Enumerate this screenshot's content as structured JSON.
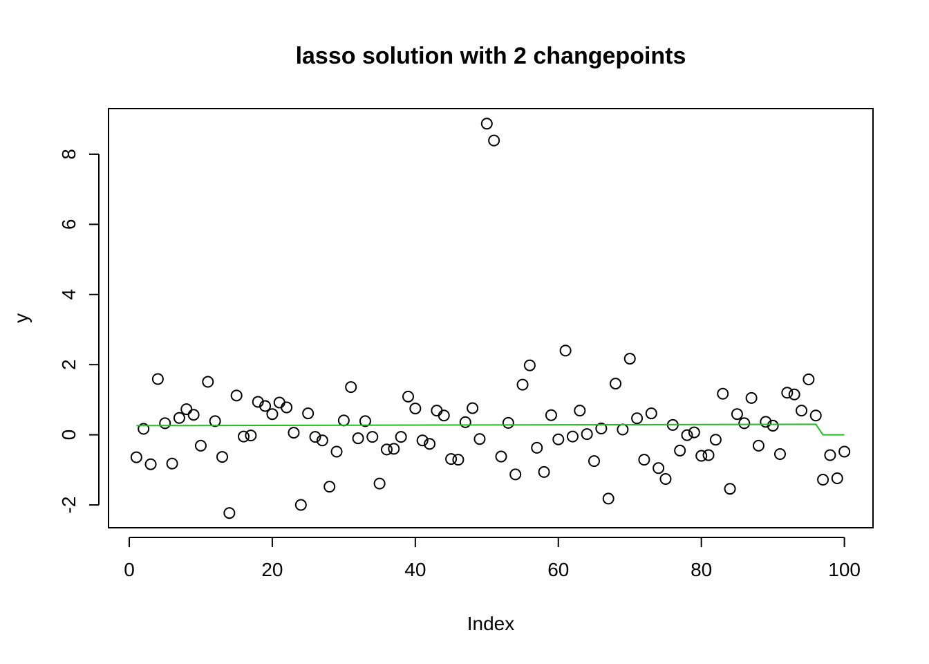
{
  "chart_data": {
    "type": "scatter",
    "title": "lasso solution with 2 changepoints",
    "xlabel": "Index",
    "ylabel": "y",
    "xlim": [
      -2.9,
      104
    ],
    "ylim": [
      -2.65,
      9.3
    ],
    "xticks": [
      0,
      20,
      40,
      60,
      80,
      100
    ],
    "yticks": [
      -2,
      0,
      2,
      4,
      6,
      8
    ],
    "grid": false,
    "legend": "none",
    "colors": {
      "points": "#000000",
      "fit": "#22bb22"
    },
    "points": {
      "x": [
        1,
        2,
        3,
        4,
        5,
        6,
        7,
        8,
        9,
        10,
        11,
        12,
        13,
        14,
        15,
        16,
        17,
        18,
        19,
        20,
        21,
        22,
        23,
        24,
        25,
        26,
        27,
        28,
        29,
        30,
        31,
        32,
        33,
        34,
        35,
        36,
        37,
        38,
        39,
        40,
        41,
        42,
        43,
        44,
        45,
        46,
        47,
        48,
        49,
        50,
        51,
        52,
        53,
        54,
        55,
        56,
        57,
        58,
        59,
        60,
        61,
        62,
        63,
        64,
        65,
        66,
        67,
        68,
        69,
        70,
        71,
        72,
        73,
        74,
        75,
        76,
        77,
        78,
        79,
        80,
        81,
        82,
        83,
        84,
        85,
        86,
        87,
        88,
        89,
        90,
        91,
        92,
        93,
        94,
        95,
        96,
        97,
        98,
        99,
        100
      ],
      "y": [
        -0.64,
        0.17,
        -0.84,
        1.59,
        0.33,
        -0.82,
        0.48,
        0.73,
        0.57,
        -0.31,
        1.51,
        0.39,
        -0.63,
        -2.23,
        1.12,
        -0.05,
        -0.02,
        0.94,
        0.82,
        0.59,
        0.92,
        0.78,
        0.06,
        -2.0,
        0.61,
        -0.06,
        -0.16,
        -1.48,
        -0.48,
        0.41,
        1.36,
        -0.1,
        0.39,
        -0.06,
        -1.39,
        -0.42,
        -0.4,
        -0.06,
        1.09,
        0.75,
        -0.16,
        -0.26,
        0.69,
        0.55,
        -0.69,
        -0.71,
        0.36,
        0.76,
        -0.12,
        8.87,
        8.39,
        -0.62,
        0.34,
        -1.13,
        1.43,
        1.98,
        -0.37,
        -1.06,
        0.56,
        -0.13,
        2.4,
        -0.05,
        0.69,
        0.02,
        -0.75,
        0.18,
        -1.82,
        1.46,
        0.15,
        2.17,
        0.47,
        -0.71,
        0.61,
        -0.95,
        -1.26,
        0.28,
        -0.45,
        -0.01,
        0.07,
        -0.6,
        -0.58,
        -0.14,
        1.17,
        -1.54,
        0.59,
        0.33,
        1.05,
        -0.31,
        0.37,
        0.26,
        -0.55,
        1.2,
        1.15,
        0.69,
        1.58,
        0.55,
        -1.28,
        -0.58,
        -1.24,
        -0.48
      ]
    },
    "fit": {
      "x": [
        1,
        96,
        97,
        100
      ],
      "y": [
        0.26,
        0.3,
        0.0,
        0.0
      ]
    }
  }
}
